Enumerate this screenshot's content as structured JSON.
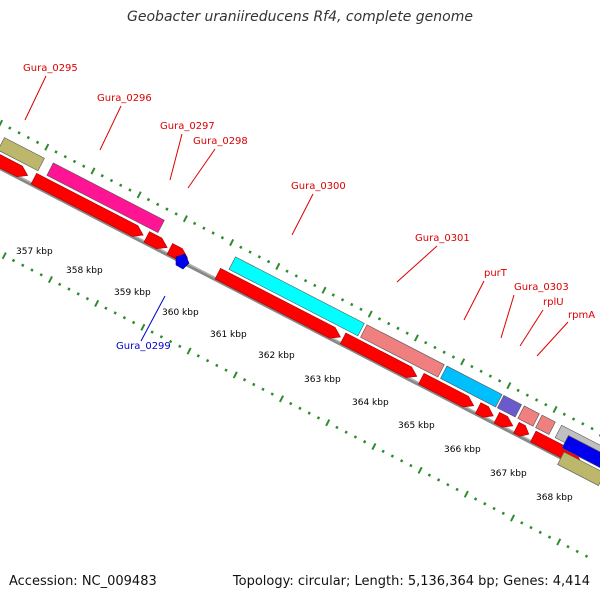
{
  "title": "Geobacter uraniireducens Rf4, complete genome",
  "footer": {
    "accession": "Accession: NC_009483",
    "summary": "Topology: circular; Length: 5,136,364 bp; Genes: 4,414"
  },
  "colors": {
    "backbone": "#888888",
    "tick": "#2e8b2e",
    "cds_red": "#ff0000",
    "label_red": "#dd0000",
    "label_blue": "#0000cc",
    "ruler_text": "#000000"
  },
  "ruler": {
    "labels": [
      "357 kbp",
      "358 kbp",
      "359 kbp",
      "360 kbp",
      "361 kbp",
      "362 kbp",
      "363 kbp",
      "364 kbp",
      "365 kbp",
      "366 kbp",
      "367 kbp",
      "368 kbp"
    ]
  },
  "gene_labels": [
    {
      "text": "Gura_0295"
    },
    {
      "text": "Gura_0296"
    },
    {
      "text": "Gura_0297"
    },
    {
      "text": "Gura_0298"
    },
    {
      "text": "Gura_0300"
    },
    {
      "text": "Gura_0301"
    },
    {
      "text": "purT"
    },
    {
      "text": "Gura_0303"
    },
    {
      "text": "rplU"
    },
    {
      "text": "rpmA"
    },
    {
      "text": "Gura_0299"
    }
  ]
}
